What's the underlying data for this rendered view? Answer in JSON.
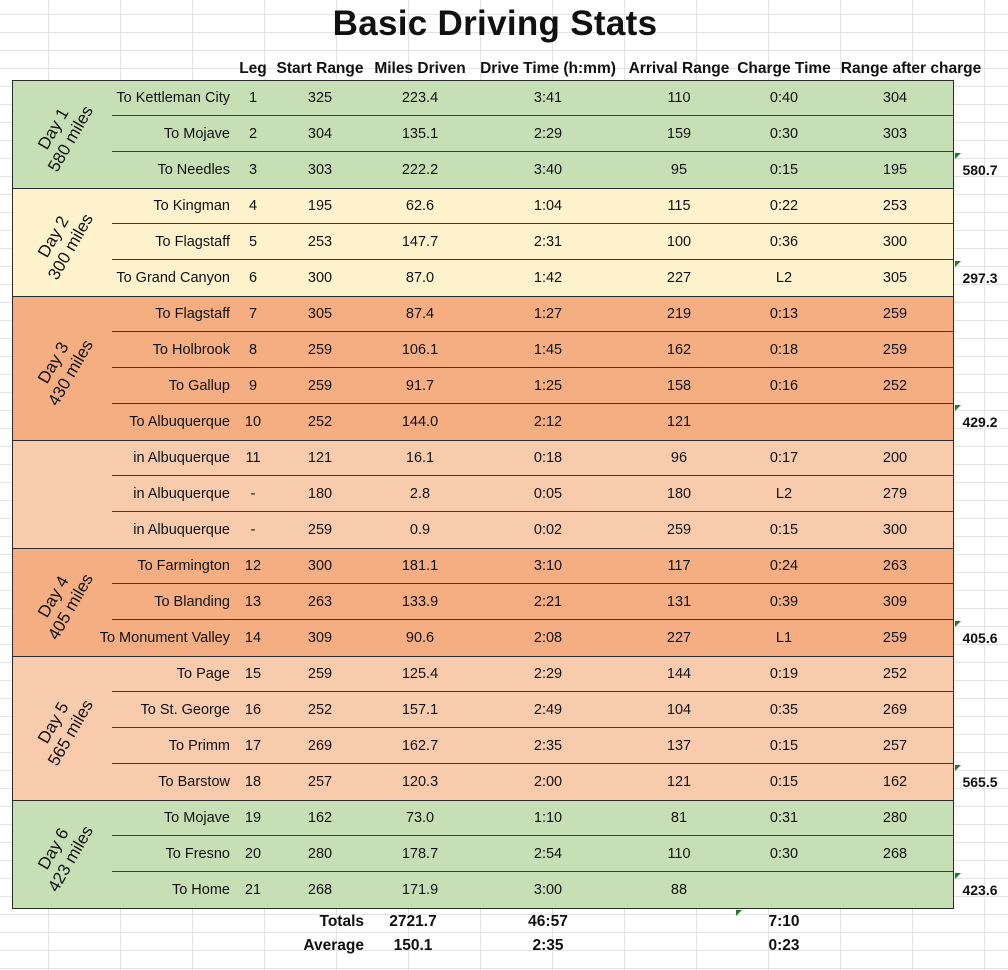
{
  "title": "Basic Driving Stats",
  "headers": [
    "Leg",
    "Start Range",
    "Miles Driven",
    "Drive Time (h:mm)",
    "Arrival Range",
    "Charge Time",
    "Range after charge"
  ],
  "colors": {
    "green": "#c6dfb4",
    "yellow": "#fdf2cc",
    "orange": "#f4ae82",
    "peach": "#f8cbad",
    "triangle": "#1c7d2a"
  },
  "days": [
    {
      "label1": "Day 1",
      "label2": "580 miles",
      "color": "#c6dfb4"
    },
    {
      "label1": "Day 2",
      "label2": "300 miles",
      "color": "#fdf2cc"
    },
    {
      "label1": "Day 3",
      "label2": "430 miles",
      "color": "#f4ae82"
    },
    {
      "label1": "",
      "label2": "",
      "color": "#f8cbad"
    },
    {
      "label1": "Day 4",
      "label2": "405 miles",
      "color": "#f4ae82"
    },
    {
      "label1": "Day 5",
      "label2": "565 miles",
      "color": "#f8cbad"
    },
    {
      "label1": "Day 6",
      "label2": "423 miles",
      "color": "#c6dfb4"
    }
  ],
  "rows": [
    {
      "dest": "To Kettleman City",
      "leg": "1",
      "start": "325",
      "miles": "223.4",
      "drive": "3:41",
      "arrival": "110",
      "charge": "0:40",
      "after": "304",
      "subtotal": ""
    },
    {
      "dest": "To Mojave",
      "leg": "2",
      "start": "304",
      "miles": "135.1",
      "drive": "2:29",
      "arrival": "159",
      "charge": "0:30",
      "after": "303",
      "subtotal": ""
    },
    {
      "dest": "To Needles",
      "leg": "3",
      "start": "303",
      "miles": "222.2",
      "drive": "3:40",
      "arrival": "95",
      "charge": "0:15",
      "after": "195",
      "subtotal": "580.7"
    },
    {
      "dest": "To Kingman",
      "leg": "4",
      "start": "195",
      "miles": "62.6",
      "drive": "1:04",
      "arrival": "115",
      "charge": "0:22",
      "after": "253",
      "subtotal": ""
    },
    {
      "dest": "To Flagstaff",
      "leg": "5",
      "start": "253",
      "miles": "147.7",
      "drive": "2:31",
      "arrival": "100",
      "charge": "0:36",
      "after": "300",
      "subtotal": ""
    },
    {
      "dest": "To Grand Canyon",
      "leg": "6",
      "start": "300",
      "miles": "87.0",
      "drive": "1:42",
      "arrival": "227",
      "charge": "L2",
      "after": "305",
      "subtotal": "297.3"
    },
    {
      "dest": "To Flagstaff",
      "leg": "7",
      "start": "305",
      "miles": "87.4",
      "drive": "1:27",
      "arrival": "219",
      "charge": "0:13",
      "after": "259",
      "subtotal": ""
    },
    {
      "dest": "To Holbrook",
      "leg": "8",
      "start": "259",
      "miles": "106.1",
      "drive": "1:45",
      "arrival": "162",
      "charge": "0:18",
      "after": "259",
      "subtotal": ""
    },
    {
      "dest": "To Gallup",
      "leg": "9",
      "start": "259",
      "miles": "91.7",
      "drive": "1:25",
      "arrival": "158",
      "charge": "0:16",
      "after": "252",
      "subtotal": ""
    },
    {
      "dest": "To Albuquerque",
      "leg": "10",
      "start": "252",
      "miles": "144.0",
      "drive": "2:12",
      "arrival": "121",
      "charge": "",
      "after": "",
      "subtotal": "429.2"
    },
    {
      "dest": "in Albuquerque",
      "leg": "11",
      "start": "121",
      "miles": "16.1",
      "drive": "0:18",
      "arrival": "96",
      "charge": "0:17",
      "after": "200",
      "subtotal": ""
    },
    {
      "dest": "in Albuquerque",
      "leg": "-",
      "start": "180",
      "miles": "2.8",
      "drive": "0:05",
      "arrival": "180",
      "charge": "L2",
      "after": "279",
      "subtotal": ""
    },
    {
      "dest": "in Albuquerque",
      "leg": "-",
      "start": "259",
      "miles": "0.9",
      "drive": "0:02",
      "arrival": "259",
      "charge": "0:15",
      "after": "300",
      "subtotal": ""
    },
    {
      "dest": "To Farmington",
      "leg": "12",
      "start": "300",
      "miles": "181.1",
      "drive": "3:10",
      "arrival": "117",
      "charge": "0:24",
      "after": "263",
      "subtotal": ""
    },
    {
      "dest": "To Blanding",
      "leg": "13",
      "start": "263",
      "miles": "133.9",
      "drive": "2:21",
      "arrival": "131",
      "charge": "0:39",
      "after": "309",
      "subtotal": ""
    },
    {
      "dest": "To Monument Valley",
      "leg": "14",
      "start": "309",
      "miles": "90.6",
      "drive": "2:08",
      "arrival": "227",
      "charge": "L1",
      "after": "259",
      "subtotal": "405.6"
    },
    {
      "dest": "To Page",
      "leg": "15",
      "start": "259",
      "miles": "125.4",
      "drive": "2:29",
      "arrival": "144",
      "charge": "0:19",
      "after": "252",
      "subtotal": ""
    },
    {
      "dest": "To St. George",
      "leg": "16",
      "start": "252",
      "miles": "157.1",
      "drive": "2:49",
      "arrival": "104",
      "charge": "0:35",
      "after": "269",
      "subtotal": ""
    },
    {
      "dest": "To Primm",
      "leg": "17",
      "start": "269",
      "miles": "162.7",
      "drive": "2:35",
      "arrival": "137",
      "charge": "0:15",
      "after": "257",
      "subtotal": ""
    },
    {
      "dest": "To Barstow",
      "leg": "18",
      "start": "257",
      "miles": "120.3",
      "drive": "2:00",
      "arrival": "121",
      "charge": "0:15",
      "after": "162",
      "subtotal": "565.5"
    },
    {
      "dest": "To Mojave",
      "leg": "19",
      "start": "162",
      "miles": "73.0",
      "drive": "1:10",
      "arrival": "81",
      "charge": "0:31",
      "after": "280",
      "subtotal": ""
    },
    {
      "dest": "To Fresno",
      "leg": "20",
      "start": "280",
      "miles": "178.7",
      "drive": "2:54",
      "arrival": "110",
      "charge": "0:30",
      "after": "268",
      "subtotal": ""
    },
    {
      "dest": "To Home",
      "leg": "21",
      "start": "268",
      "miles": "171.9",
      "drive": "3:00",
      "arrival": "88",
      "charge": "",
      "after": "",
      "subtotal": "423.6"
    }
  ],
  "totals": {
    "label": "Totals",
    "miles": "2721.7",
    "drive": "46:57",
    "charge": "7:10"
  },
  "average": {
    "label": "Average",
    "miles": "150.1",
    "drive": "2:35",
    "charge": "0:23"
  }
}
